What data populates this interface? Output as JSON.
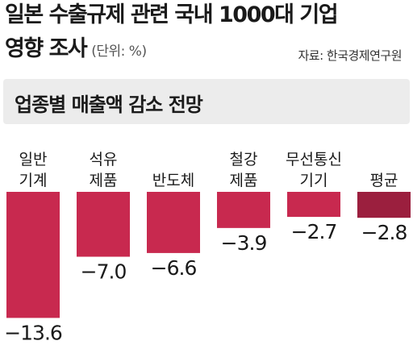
{
  "header": {
    "title_line1": "일본 수출규제 관련 국내 1000대 기업",
    "title_line2": "영향 조사",
    "unit": "(단위: %)",
    "source": "자료: 한국경제연구원",
    "subtitle": "업종별 매출액 감소 전망"
  },
  "colors": {
    "bar": "#c8294f",
    "bar_average": "#9b1f3e",
    "subtitle_band": "#ececec"
  },
  "chart_data": {
    "type": "bar",
    "title": "업종별 매출액 감소 전망",
    "categories": [
      [
        "일반",
        "기계"
      ],
      [
        "석유",
        "제품"
      ],
      [
        "반도체"
      ],
      [
        "철강",
        "제품"
      ],
      [
        "무선통신",
        "기기"
      ],
      [
        "평균"
      ]
    ],
    "values": [
      -13.6,
      -7.0,
      -6.6,
      -3.9,
      -2.7,
      -2.8
    ],
    "value_labels": [
      "−13.6",
      "−7.0",
      "−6.6",
      "−3.9",
      "−2.7",
      "−2.8"
    ],
    "ylabel": "",
    "xlabel": "",
    "unit": "%",
    "grid": false,
    "legend": "none"
  }
}
